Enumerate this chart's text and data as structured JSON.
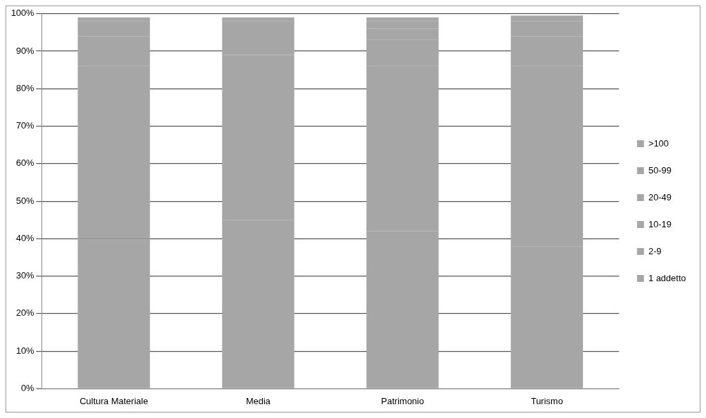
{
  "chart_data": {
    "type": "bar",
    "stacked": true,
    "categories": [
      "Cultura Materiale",
      "Media",
      "Patrimonio",
      "Turismo"
    ],
    "series": [
      {
        "name": "1 addetto",
        "color": "#a6a6a6",
        "values": [
          40,
          45,
          42,
          38
        ]
      },
      {
        "name": "2-9",
        "color": "#a6a6a6",
        "values": [
          46,
          44,
          44,
          48
        ]
      },
      {
        "name": "10-19",
        "color": "#a6a6a6",
        "values": [
          8,
          6,
          7,
          8
        ]
      },
      {
        "name": "20-49",
        "color": "#a6a6a6",
        "values": [
          3,
          2,
          3,
          3
        ]
      },
      {
        "name": "50-99",
        "color": "#a6a6a6",
        "values": [
          1,
          1,
          2,
          1
        ]
      },
      {
        "name": ">100",
        "color": "#a6a6a6",
        "values": [
          1,
          1,
          1,
          1.5
        ]
      }
    ],
    "ylim": [
      0,
      100
    ],
    "yticks": [
      {
        "value": 0,
        "label": "0%"
      },
      {
        "value": 10,
        "label": "10%"
      },
      {
        "value": 20,
        "label": "20%"
      },
      {
        "value": 30,
        "label": "30%"
      },
      {
        "value": 40,
        "label": "40%"
      },
      {
        "value": 50,
        "label": "50%"
      },
      {
        "value": 60,
        "label": "60%"
      },
      {
        "value": 70,
        "label": "70%"
      },
      {
        "value": 80,
        "label": "80%"
      },
      {
        "value": 90,
        "label": "90%"
      },
      {
        "value": 100,
        "label": "100%"
      }
    ],
    "grid": "y",
    "legend": "right"
  }
}
